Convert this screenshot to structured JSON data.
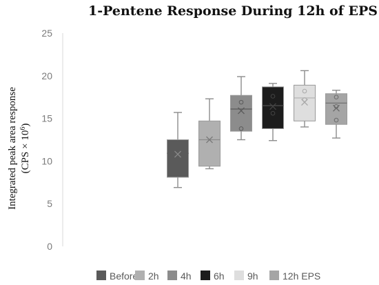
{
  "chart_data": {
    "type": "box",
    "title": "1-Pentene Response During 12h of EPS",
    "xlabel": "",
    "ylabel_line1": "Integrated peak area response",
    "ylabel_line2_prefix": "(CPS × 10",
    "ylabel_line2_sup": "6",
    "ylabel_line2_suffix": ")",
    "ylim": [
      0,
      25
    ],
    "yticks": [
      0,
      5,
      10,
      15,
      20,
      25
    ],
    "grid": false,
    "legend_position": "bottom",
    "series": [
      {
        "name": "Before",
        "color": "#5a5a5a",
        "median_color": "#5a5a5a",
        "marker_color": "#8a8a8a",
        "min": 6.9,
        "q1": 8.1,
        "median": 10.9,
        "q3": 12.5,
        "max": 15.7,
        "mean": 10.8,
        "points": []
      },
      {
        "name": "2h",
        "color": "#b0b0b0",
        "median_color": "#8a8a8a",
        "marker_color": "#7a7a7a",
        "min": 9.1,
        "q1": 9.4,
        "median": 12.5,
        "q3": 14.7,
        "max": 17.3,
        "mean": 12.5,
        "points": []
      },
      {
        "name": "4h",
        "color": "#8c8c8c",
        "median_color": "#5a5a5a",
        "marker_color": "#5a5a5a",
        "min": 12.5,
        "q1": 13.5,
        "median": 16.1,
        "q3": 17.7,
        "max": 19.9,
        "mean": 15.9,
        "points": [
          13.8,
          16.9
        ]
      },
      {
        "name": "6h",
        "color": "#1c1c1c",
        "median_color": "#555555",
        "marker_color": "#444444",
        "min": 12.4,
        "q1": 13.8,
        "median": 16.5,
        "q3": 18.7,
        "max": 19.1,
        "mean": 16.4,
        "points": [
          15.6,
          17.6
        ]
      },
      {
        "name": "9h",
        "color": "#dedede",
        "median_color": "#b0b0b0",
        "marker_color": "#a8a8a8",
        "min": 14.0,
        "q1": 14.7,
        "median": 17.4,
        "q3": 18.9,
        "max": 20.6,
        "mean": 16.9,
        "points": [
          17.2,
          18.2
        ]
      },
      {
        "name": "12h EPS",
        "color": "#a5a5a5",
        "median_color": "#707070",
        "marker_color": "#6a6a6a",
        "min": 12.7,
        "q1": 14.3,
        "median": 16.8,
        "q3": 17.9,
        "max": 18.3,
        "mean": 16.2,
        "points": [
          14.8,
          16.4,
          17.5
        ]
      }
    ]
  }
}
